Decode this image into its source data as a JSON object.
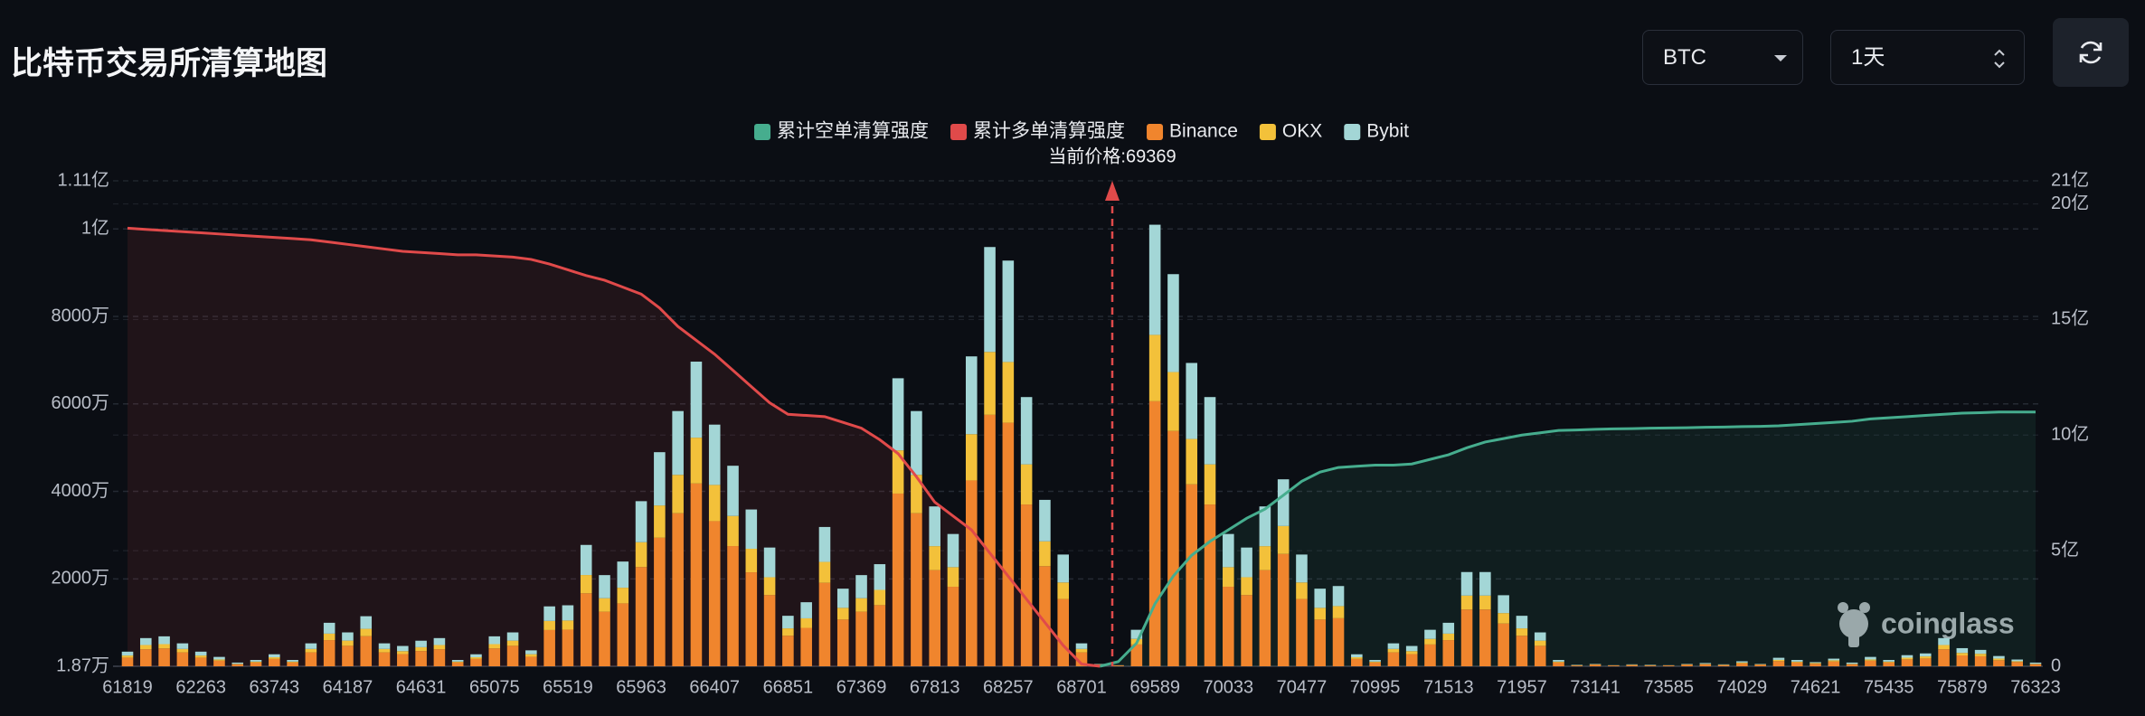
{
  "header": {
    "title": "比特币交易所清算地图",
    "symbol": "BTC",
    "interval": "1天"
  },
  "chart_data": {
    "type": "bar",
    "annotation": "当前价格:69369",
    "watermark": "coinglass",
    "categories": [
      "61819",
      null,
      null,
      null,
      "62263",
      null,
      null,
      null,
      "63743",
      null,
      null,
      null,
      "64187",
      null,
      null,
      null,
      "64631",
      null,
      null,
      null,
      "65075",
      null,
      null,
      null,
      "65519",
      null,
      null,
      null,
      "65963",
      null,
      null,
      null,
      "66407",
      null,
      null,
      null,
      "66851",
      null,
      null,
      null,
      "67369",
      null,
      null,
      null,
      "67813",
      null,
      null,
      null,
      "68257",
      null,
      null,
      null,
      "68701",
      null,
      null,
      null,
      "69589",
      null,
      null,
      null,
      "70033",
      null,
      null,
      null,
      "70477",
      null,
      null,
      null,
      "70995",
      null,
      null,
      null,
      "71513",
      null,
      null,
      null,
      "71957",
      null,
      null,
      null,
      "73141",
      null,
      null,
      null,
      "73585",
      null,
      null,
      null,
      "74029",
      null,
      null,
      null,
      "74621",
      null,
      null,
      null,
      "75435",
      null,
      null,
      null,
      "75879",
      null,
      null,
      null,
      "76323"
    ],
    "series": [
      {
        "name": "累计空单清算强度",
        "type": "line",
        "axis": "y2",
        "color": "#46ad8e",
        "values": [
          null,
          null,
          null,
          null,
          null,
          null,
          null,
          null,
          null,
          null,
          null,
          null,
          null,
          null,
          null,
          null,
          null,
          null,
          null,
          null,
          null,
          null,
          null,
          null,
          null,
          null,
          null,
          null,
          null,
          null,
          null,
          null,
          null,
          null,
          null,
          null,
          null,
          null,
          null,
          null,
          null,
          null,
          null,
          null,
          null,
          null,
          null,
          null,
          null,
          null,
          null,
          null,
          null,
          0,
          0.2,
          1.0,
          2.7,
          3.9,
          4.8,
          5.4,
          5.9,
          6.4,
          6.8,
          7.4,
          8.0,
          8.4,
          8.6,
          8.65,
          8.7,
          8.7,
          8.75,
          8.95,
          9.15,
          9.45,
          9.7,
          9.85,
          10.0,
          10.1,
          10.2,
          10.22,
          10.25,
          10.27,
          10.28,
          10.3,
          10.31,
          10.32,
          10.34,
          10.35,
          10.37,
          10.38,
          10.4,
          10.45,
          10.5,
          10.55,
          10.6,
          10.7,
          10.75,
          10.8,
          10.85,
          10.9,
          10.95,
          10.97,
          11.0,
          11.0,
          11.0
        ]
      },
      {
        "name": "累计多单清算强度",
        "type": "line",
        "axis": "y2",
        "color": "#e04a4a",
        "values": [
          18.95,
          18.9,
          18.85,
          18.8,
          18.75,
          18.7,
          18.65,
          18.6,
          18.55,
          18.5,
          18.45,
          18.35,
          18.25,
          18.15,
          18.05,
          17.95,
          17.9,
          17.85,
          17.8,
          17.8,
          17.75,
          17.7,
          17.6,
          17.4,
          17.15,
          16.9,
          16.7,
          16.4,
          16.1,
          15.5,
          14.7,
          14.1,
          13.5,
          12.8,
          12.1,
          11.4,
          10.9,
          10.85,
          10.8,
          10.55,
          10.3,
          9.8,
          9.2,
          8.2,
          7.1,
          6.5,
          5.9,
          4.9,
          3.9,
          2.9,
          1.9,
          0.9,
          0.1,
          0,
          null,
          null,
          null,
          null,
          null,
          null,
          null,
          null,
          null,
          null,
          null,
          null,
          null,
          null,
          null,
          null,
          null,
          null,
          null,
          null,
          null,
          null,
          null,
          null,
          null,
          null,
          null,
          null,
          null,
          null,
          null,
          null,
          null,
          null,
          null,
          null,
          null,
          null,
          null,
          null,
          null,
          null,
          null,
          null,
          null,
          null,
          null,
          null,
          null,
          null,
          null
        ]
      },
      {
        "name": "Binance",
        "type": "bar",
        "color": "#f0852d",
        "values": [
          200,
          390,
          410,
          320,
          200,
          130,
          50,
          90,
          170,
          90,
          320,
          600,
          470,
          690,
          320,
          280,
          350,
          390,
          90,
          170,
          410,
          470,
          220,
          830,
          840,
          1670,
          1250,
          1440,
          2270,
          2940,
          3500,
          4180,
          3320,
          2750,
          2150,
          1630,
          700,
          880,
          1910,
          1070,
          1250,
          1400,
          3950,
          3500,
          2200,
          1820,
          4250,
          5750,
          5570,
          3700,
          2290,
          1540,
          320,
          40,
          20,
          500,
          6060,
          5380,
          4160,
          3700,
          1820,
          1630,
          2200,
          2570,
          1540,
          1070,
          1100,
          170,
          90,
          320,
          280,
          500,
          600,
          1300,
          1300,
          980,
          700,
          470,
          90,
          20,
          40,
          20,
          30,
          20,
          20,
          40,
          50,
          30,
          70,
          40,
          120,
          90,
          60,
          110,
          50,
          130,
          90,
          160,
          180,
          390,
          250,
          230,
          140,
          100,
          50
        ]
      },
      {
        "name": "OKX",
        "type": "bar",
        "color": "#f3c13a",
        "values": [
          50,
          100,
          100,
          80,
          50,
          30,
          10,
          20,
          40,
          20,
          80,
          150,
          120,
          170,
          80,
          70,
          90,
          100,
          20,
          40,
          100,
          120,
          60,
          210,
          210,
          420,
          310,
          360,
          570,
          740,
          880,
          1050,
          830,
          690,
          540,
          410,
          170,
          220,
          480,
          270,
          310,
          350,
          990,
          880,
          550,
          450,
          1060,
          1440,
          1390,
          920,
          570,
          380,
          80,
          10,
          5,
          130,
          1520,
          1350,
          1040,
          920,
          450,
          410,
          550,
          640,
          380,
          270,
          280,
          40,
          20,
          80,
          70,
          130,
          150,
          320,
          320,
          240,
          170,
          120,
          20,
          10,
          10,
          5,
          10,
          10,
          5,
          10,
          10,
          10,
          20,
          10,
          30,
          20,
          20,
          30,
          10,
          30,
          20,
          40,
          50,
          100,
          60,
          60,
          40,
          20,
          10
        ]
      },
      {
        "name": "Bybit",
        "type": "bar",
        "color": "#a3d6d6",
        "values": [
          90,
          160,
          180,
          130,
          90,
          60,
          30,
          40,
          70,
          40,
          130,
          250,
          190,
          290,
          130,
          120,
          150,
          160,
          40,
          70,
          180,
          190,
          90,
          335,
          350,
          690,
          530,
          600,
          940,
          1220,
          1460,
          1740,
          1380,
          1150,
          900,
          680,
          290,
          370,
          800,
          440,
          530,
          590,
          1650,
          1460,
          910,
          760,
          1780,
          2400,
          2320,
          1540,
          950,
          640,
          130,
          10,
          5,
          210,
          2520,
          2240,
          1740,
          1540,
          760,
          680,
          910,
          1070,
          640,
          440,
          460,
          70,
          40,
          130,
          120,
          210,
          250,
          540,
          540,
          410,
          290,
          190,
          40,
          10,
          10,
          5,
          10,
          10,
          5,
          10,
          20,
          10,
          30,
          10,
          50,
          40,
          20,
          40,
          30,
          60,
          40,
          60,
          70,
          160,
          110,
          90,
          60,
          40,
          30
        ]
      }
    ],
    "ylim": [
      1.87,
      11100
    ],
    "yticks": [
      {
        "value": 1.87,
        "label": "1.87万"
      },
      {
        "value": 2000,
        "label": "2000万"
      },
      {
        "value": 4000,
        "label": "4000万"
      },
      {
        "value": 6000,
        "label": "6000万"
      },
      {
        "value": 8000,
        "label": "8000万"
      },
      {
        "value": 10000,
        "label": "1亿"
      },
      {
        "value": 11100,
        "label": "1.11亿"
      }
    ],
    "y2lim": [
      0,
      21
    ],
    "y2ticks": [
      0,
      {
        "value": 5,
        "label": "5亿"
      },
      {
        "value": 10,
        "label": "10亿"
      },
      {
        "value": 15,
        "label": "15亿"
      },
      {
        "value": 20,
        "label": "20亿"
      },
      {
        "value": 21,
        "label": "21亿"
      }
    ],
    "grid": true,
    "legend": "top"
  }
}
